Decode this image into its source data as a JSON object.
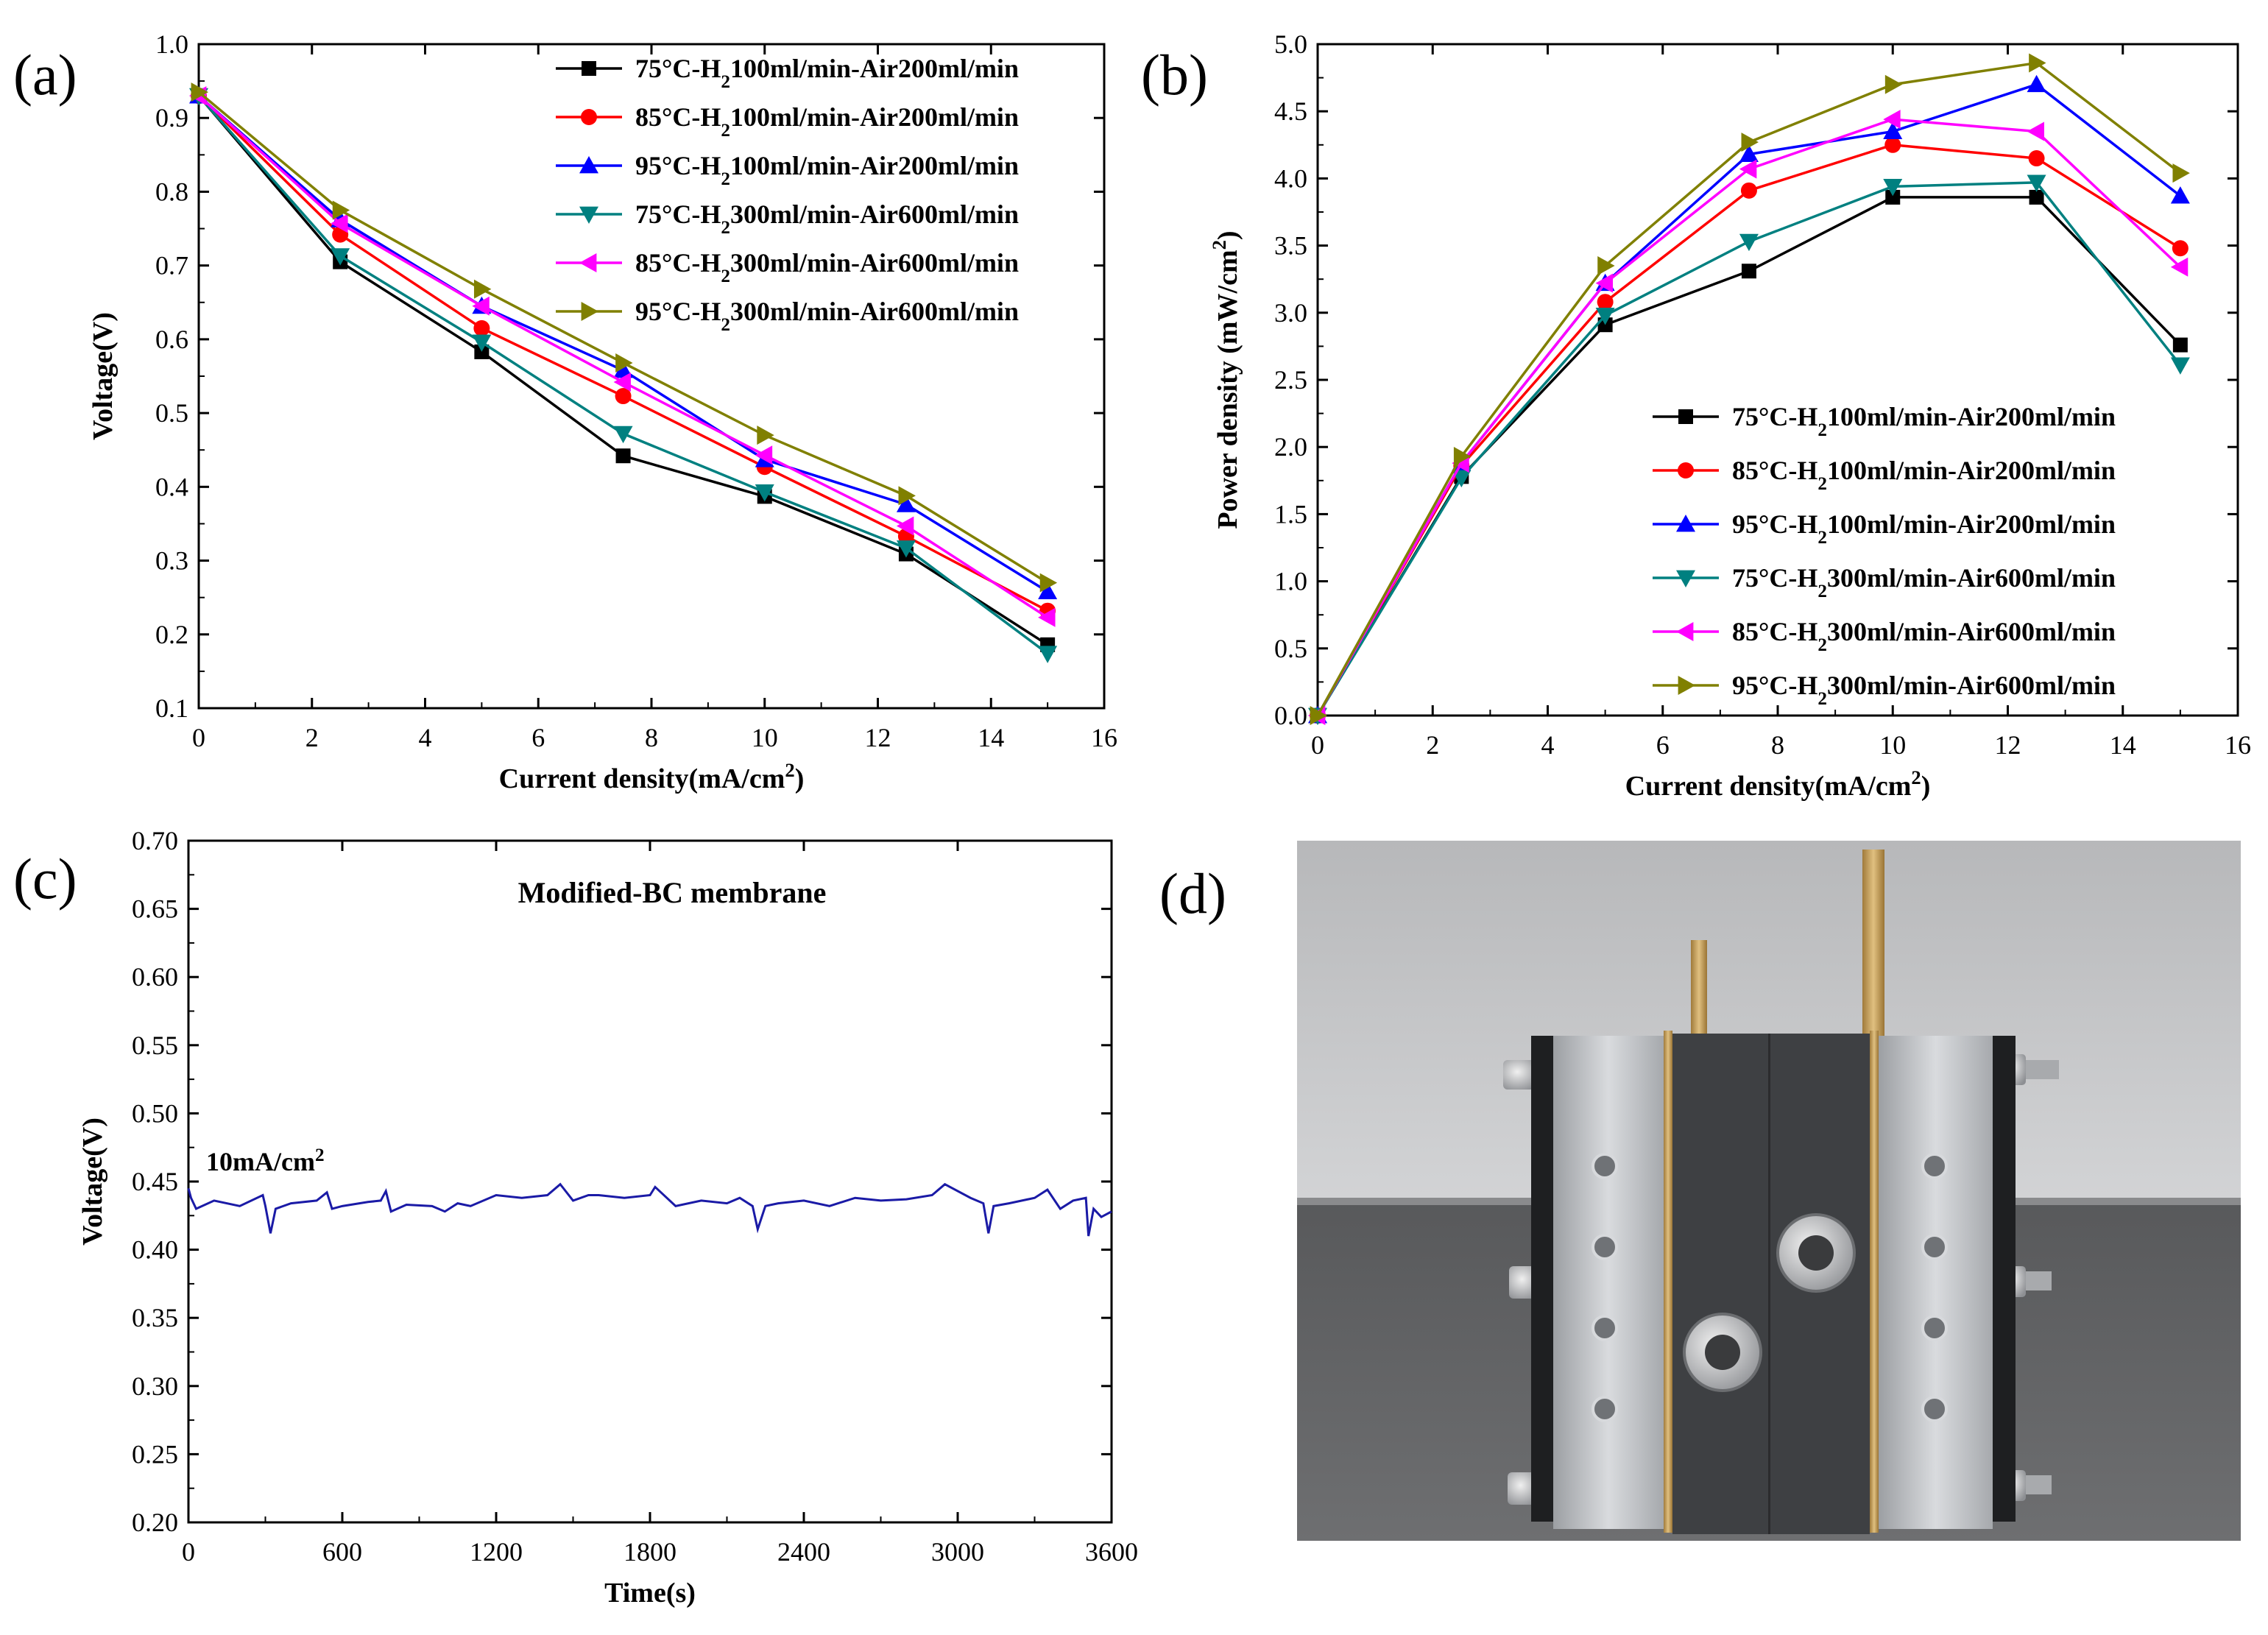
{
  "chart_data": [
    {
      "panel": "(a)",
      "type": "line",
      "xlabel": "Current density(mA/cm²)",
      "ylabel": "Voltage(V)",
      "xlim": [
        0,
        16
      ],
      "ylim": [
        0.1,
        1.0
      ],
      "xticks": [
        "0",
        "2",
        "4",
        "6",
        "8",
        "10",
        "12",
        "14",
        "16"
      ],
      "yticks": [
        "0.1",
        "0.2",
        "0.3",
        "0.4",
        "0.5",
        "0.6",
        "0.7",
        "0.8",
        "0.9",
        "1.0"
      ],
      "legend_position": "top-right",
      "x": [
        0,
        2.5,
        5,
        7.5,
        10,
        12.5,
        15
      ],
      "series": [
        {
          "name": "75°C-H₂100ml/min-Air200ml/min",
          "color": "#000000",
          "marker": "square",
          "values": [
            0.93,
            0.705,
            0.583,
            0.442,
            0.387,
            0.309,
            0.186
          ]
        },
        {
          "name": "85°C-H₂100ml/min-Air200ml/min",
          "color": "#ff0000",
          "marker": "circle",
          "values": [
            0.93,
            0.742,
            0.615,
            0.523,
            0.427,
            0.333,
            0.232
          ]
        },
        {
          "name": "95°C-H₂100ml/min-Air200ml/min",
          "color": "#0000ff",
          "marker": "triangle-up",
          "values": [
            0.93,
            0.762,
            0.645,
            0.558,
            0.437,
            0.376,
            0.258
          ]
        },
        {
          "name": "75°C-H₂300ml/min-Air600ml/min",
          "color": "#008080",
          "marker": "triangle-down",
          "values": [
            0.93,
            0.713,
            0.596,
            0.472,
            0.393,
            0.317,
            0.174
          ]
        },
        {
          "name": "85°C-H₂300ml/min-Air600ml/min",
          "color": "#ff00ff",
          "marker": "triangle-left",
          "values": [
            0.93,
            0.757,
            0.645,
            0.542,
            0.443,
            0.347,
            0.223
          ]
        },
        {
          "name": "95°C-H₂300ml/min-Air600ml/min",
          "color": "#808000",
          "marker": "triangle-right",
          "values": [
            0.935,
            0.775,
            0.668,
            0.568,
            0.47,
            0.388,
            0.27
          ]
        }
      ]
    },
    {
      "panel": "(b)",
      "type": "line",
      "xlabel": "Current density(mA/cm²)",
      "ylabel": "Power density (mW/cm²)",
      "xlim": [
        0,
        16
      ],
      "ylim": [
        0.0,
        5.0
      ],
      "xticks": [
        "0",
        "2",
        "4",
        "6",
        "8",
        "10",
        "12",
        "14",
        "16"
      ],
      "yticks": [
        "0.0",
        "0.5",
        "1.0",
        "1.5",
        "2.0",
        "2.5",
        "3.0",
        "3.5",
        "4.0",
        "4.5",
        "5.0"
      ],
      "legend_position": "bottom-right",
      "x": [
        0,
        2.5,
        5,
        7.5,
        10,
        12.5,
        15
      ],
      "series": [
        {
          "name": "75°C-H₂100ml/min-Air200ml/min",
          "color": "#000000",
          "marker": "square",
          "values": [
            0,
            1.78,
            2.91,
            3.31,
            3.86,
            3.86,
            2.76
          ]
        },
        {
          "name": "85°C-H₂100ml/min-Air200ml/min",
          "color": "#ff0000",
          "marker": "circle",
          "values": [
            0,
            1.86,
            3.08,
            3.91,
            4.25,
            4.15,
            3.48
          ]
        },
        {
          "name": "95°C-H₂100ml/min-Air200ml/min",
          "color": "#0000ff",
          "marker": "triangle-up",
          "values": [
            0,
            1.88,
            3.22,
            4.18,
            4.35,
            4.7,
            3.87
          ]
        },
        {
          "name": "75°C-H₂300ml/min-Air600ml/min",
          "color": "#008080",
          "marker": "triangle-down",
          "values": [
            0,
            1.77,
            2.98,
            3.53,
            3.94,
            3.97,
            2.61
          ]
        },
        {
          "name": "85°C-H₂300ml/min-Air600ml/min",
          "color": "#ff00ff",
          "marker": "triangle-left",
          "values": [
            0,
            1.88,
            3.22,
            4.07,
            4.44,
            4.35,
            3.34
          ]
        },
        {
          "name": "95°C-H₂300ml/min-Air600ml/min",
          "color": "#808000",
          "marker": "triangle-right",
          "values": [
            0,
            1.93,
            3.35,
            4.27,
            4.7,
            4.86,
            4.04
          ]
        }
      ]
    },
    {
      "panel": "(c)",
      "type": "line",
      "title": "Modified-BC membrane",
      "annotation": "10mA/cm²",
      "xlabel": "Time(s)",
      "ylabel": "Voltage(V)",
      "xlim": [
        0,
        3600
      ],
      "ylim": [
        0.2,
        0.7
      ],
      "xticks": [
        "0",
        "600",
        "1200",
        "1800",
        "2400",
        "3000",
        "3600"
      ],
      "yticks": [
        "0.20",
        "0.25",
        "0.30",
        "0.35",
        "0.40",
        "0.45",
        "0.50",
        "0.55",
        "0.60",
        "0.65",
        "0.70"
      ],
      "series": [
        {
          "name": "Modified-BC membrane",
          "color": "#1a1aa6",
          "t": [
            0,
            10,
            30,
            100,
            200,
            290,
            300,
            320,
            340,
            400,
            500,
            540,
            560,
            600,
            700,
            750,
            770,
            790,
            850,
            950,
            1000,
            1050,
            1100,
            1200,
            1300,
            1400,
            1450,
            1500,
            1560,
            1600,
            1700,
            1800,
            1820,
            1900,
            2000,
            2100,
            2150,
            2200,
            2220,
            2250,
            2300,
            2400,
            2500,
            2600,
            2700,
            2800,
            2900,
            2950,
            3050,
            3100,
            3120,
            3140,
            3200,
            3300,
            3350,
            3400,
            3450,
            3500,
            3510,
            3530,
            3560,
            3600
          ],
          "values": [
            0.445,
            0.438,
            0.43,
            0.436,
            0.432,
            0.44,
            0.432,
            0.412,
            0.43,
            0.434,
            0.436,
            0.442,
            0.43,
            0.432,
            0.435,
            0.436,
            0.443,
            0.428,
            0.433,
            0.432,
            0.428,
            0.434,
            0.432,
            0.44,
            0.438,
            0.44,
            0.448,
            0.436,
            0.44,
            0.44,
            0.438,
            0.44,
            0.446,
            0.432,
            0.436,
            0.434,
            0.438,
            0.432,
            0.415,
            0.432,
            0.434,
            0.436,
            0.432,
            0.438,
            0.436,
            0.437,
            0.44,
            0.448,
            0.438,
            0.434,
            0.412,
            0.432,
            0.434,
            0.438,
            0.444,
            0.43,
            0.436,
            0.438,
            0.41,
            0.43,
            0.424,
            0.428
          ]
        }
      ]
    }
  ],
  "panel_d": {
    "label": "(d)"
  },
  "colors": {
    "axis": "#000000",
    "background": "#ffffff"
  }
}
